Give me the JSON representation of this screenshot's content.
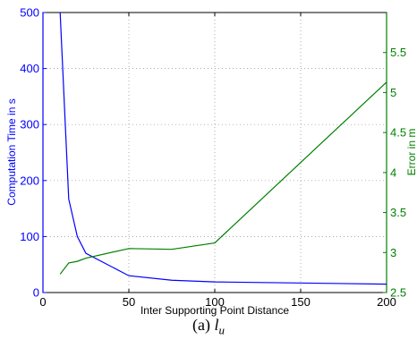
{
  "chart_data": {
    "type": "line",
    "xlabel": "Inter Supporting Point Distance",
    "ylabel_left": "Computation Time in s",
    "ylabel_right": "Error in m",
    "xlim": [
      0,
      200
    ],
    "ylim_left": [
      0,
      500
    ],
    "ylim_right": [
      2.5,
      6.0
    ],
    "x_ticks": [
      0,
      50,
      100,
      150,
      200
    ],
    "y_left_ticks": [
      0,
      100,
      200,
      300,
      400,
      500
    ],
    "y_right_ticks": [
      2.5,
      3,
      3.5,
      4,
      4.5,
      5,
      5.5
    ],
    "grid": true,
    "colors": {
      "left_axis": "#0000ff",
      "right_axis": "#007f00"
    },
    "series": [
      {
        "axis": "left",
        "color": "#0000ff",
        "x": [
          10,
          15,
          20,
          25,
          50,
          75,
          100,
          200
        ],
        "y": [
          500,
          167,
          100,
          70,
          30,
          22,
          19,
          15
        ]
      },
      {
        "axis": "right",
        "color": "#007f00",
        "x": [
          10,
          15,
          20,
          25,
          50,
          75,
          100,
          200
        ],
        "y": [
          2.73,
          2.87,
          2.89,
          2.93,
          3.05,
          3.04,
          3.12,
          5.13
        ]
      }
    ]
  },
  "caption": {
    "prefix": "(a)",
    "symbol": "l",
    "subscript": "u"
  }
}
